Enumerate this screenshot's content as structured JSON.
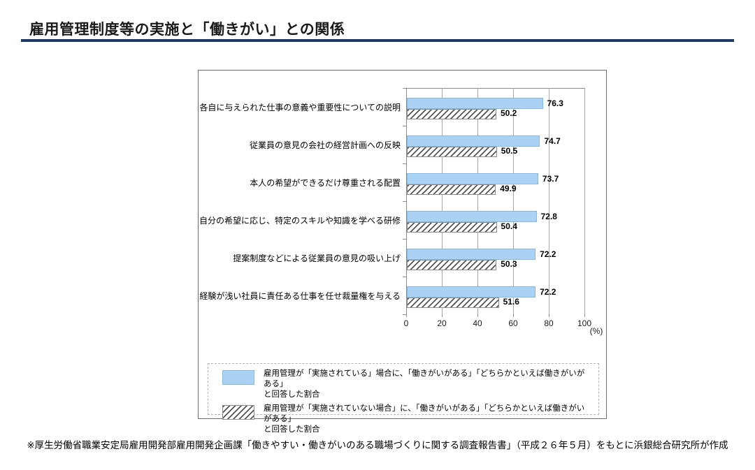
{
  "page": {
    "title": "雇用管理制度等の実施と「働きがい」との関係",
    "footnote": "※厚生労働省職業安定局雇用開発部雇用開発企画課「働きやすい・働きがいのある職場づくりに関する調査報告書」（平成２６年５月）をもとに浜銀総合研究所が作成"
  },
  "colors": {
    "title_underline": "#1f3864",
    "bar_blue_fill": "#a9d2f4",
    "bar_blue_border": "#86b8e0",
    "hatch_stripe": "#555555",
    "gridline": "#a6a6a6",
    "frame_border": "#6b6b6b"
  },
  "chart_data": {
    "type": "bar",
    "orientation": "horizontal",
    "categories": [
      "各自に与えられた仕事の意義や重要性についての説明",
      "従業員の意見の会社の経営計画への反映",
      "本人の希望ができるだけ尊重される配置",
      "自分の希望に応じ、特定のスキルや知識を学べる研修",
      "提案制度などによる従業員の意見の吸い上げ",
      "経験が浅い社員に責任ある仕事を任せ裁量権を与える"
    ],
    "series": [
      {
        "name": "雇用管理が「実施されている」場合に、「働きがいがある」「どちらかといえば働きがいがある」と回答した割合",
        "style": "blue-solid",
        "values": [
          76.3,
          74.7,
          73.7,
          72.8,
          72.2,
          72.2
        ]
      },
      {
        "name": "雇用管理が「実施されていない場合」に、「働きがいがある」「どちらかといえば働きがいがある」と回答した割合",
        "style": "hatched",
        "values": [
          50.2,
          50.5,
          49.9,
          50.4,
          50.3,
          51.6
        ]
      }
    ],
    "xlim": [
      0,
      100
    ],
    "x_ticks": [
      0,
      20,
      40,
      60,
      80,
      100
    ],
    "axis_unit": "(%)",
    "grid": true,
    "value_labels": true,
    "legend_position": "bottom"
  },
  "legend": {
    "items": [
      {
        "swatch": "blue-solid",
        "label_line1": "雇用管理が「実施されている」場合に、「働きがいがある」「どちらかといえば働きがいがある」",
        "label_line2": "と回答した割合"
      },
      {
        "swatch": "hatched",
        "label_line1": "雇用管理が「実施されていない場合」に、「働きがいがある」「どちらかといえば働きがいがある」",
        "label_line2": "と回答した割合"
      }
    ]
  }
}
